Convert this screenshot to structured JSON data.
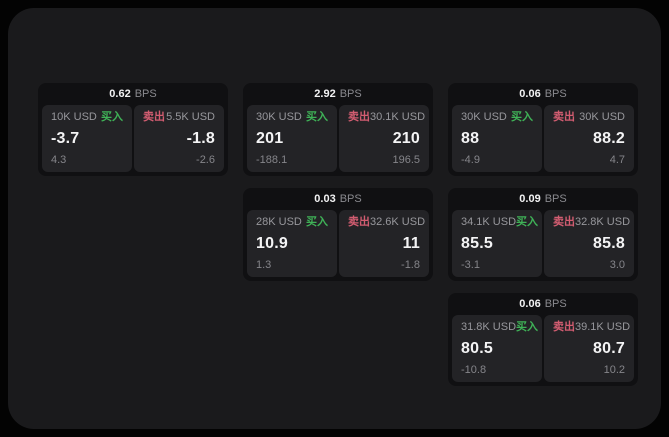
{
  "labels": {
    "bps": "BPS",
    "buy": "买入",
    "sell": "卖出"
  },
  "colors": {
    "page_bg": "#030303",
    "window_bg": "#1a1a1c",
    "card_bg": "#101012",
    "panel_bg": "#232326",
    "buy_green": "#3fb257",
    "sell_red": "#d35d71",
    "value_white": "#f4f4f5",
    "muted_gray": "#97979c"
  },
  "cards": [
    {
      "bps": "0.62",
      "buy": {
        "amount": "10K USD",
        "value": "-3.7",
        "delta": "4.3"
      },
      "sell": {
        "amount": "5.5K USD",
        "value": "-1.8",
        "delta": "-2.6"
      }
    },
    {
      "bps": "2.92",
      "buy": {
        "amount": "30K USD",
        "value": "201",
        "delta": "-188.1"
      },
      "sell": {
        "amount": "30.1K USD",
        "value": "210",
        "delta": "196.5"
      }
    },
    {
      "bps": "0.06",
      "buy": {
        "amount": "30K USD",
        "value": "88",
        "delta": "-4.9"
      },
      "sell": {
        "amount": "30K USD",
        "value": "88.2",
        "delta": "4.7"
      }
    },
    {
      "bps": "0.03",
      "buy": {
        "amount": "28K USD",
        "value": "10.9",
        "delta": "1.3"
      },
      "sell": {
        "amount": "32.6K USD",
        "value": "11",
        "delta": "-1.8"
      }
    },
    {
      "bps": "0.09",
      "buy": {
        "amount": "34.1K USD",
        "value": "85.5",
        "delta": "-3.1"
      },
      "sell": {
        "amount": "32.8K USD",
        "value": "85.8",
        "delta": "3.0"
      }
    },
    {
      "bps": "0.06",
      "buy": {
        "amount": "31.8K USD",
        "value": "80.5",
        "delta": "-10.8"
      },
      "sell": {
        "amount": "39.1K USD",
        "value": "80.7",
        "delta": "10.2"
      }
    }
  ]
}
